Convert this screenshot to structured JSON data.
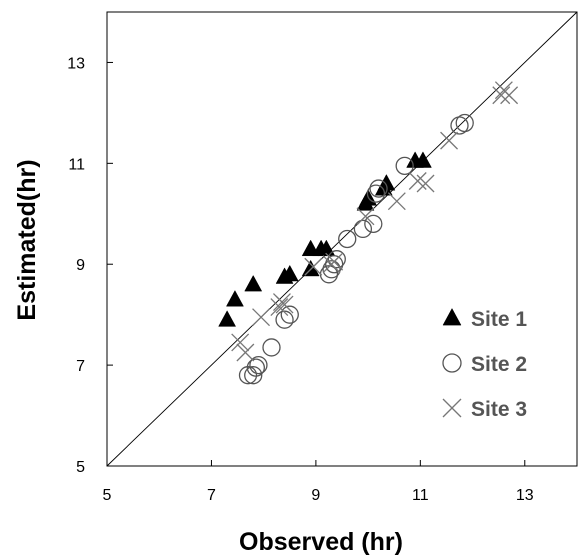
{
  "chart_data": {
    "type": "scatter",
    "xlabel": "Observed (hr)",
    "ylabel": "Estimated(hr)",
    "xlim": [
      5,
      14
    ],
    "ylim": [
      5,
      14
    ],
    "x_ticks": [
      "5",
      "7",
      "9",
      "11",
      "13"
    ],
    "y_ticks": [
      "5",
      "7",
      "9",
      "11",
      "13"
    ],
    "grid": false,
    "reference_line": "1:1",
    "legend_position": "bottom-right",
    "series": [
      {
        "name": "Site 1",
        "marker": "filled-triangle",
        "color": "#000000",
        "points": [
          [
            7.3,
            7.9
          ],
          [
            7.45,
            8.3
          ],
          [
            7.8,
            8.6
          ],
          [
            8.4,
            8.75
          ],
          [
            8.5,
            8.8
          ],
          [
            8.9,
            8.9
          ],
          [
            8.9,
            9.3
          ],
          [
            9.1,
            9.3
          ],
          [
            9.2,
            9.3
          ],
          [
            9.95,
            10.2
          ],
          [
            10.0,
            10.3
          ],
          [
            10.3,
            10.5
          ],
          [
            10.35,
            10.6
          ],
          [
            10.9,
            11.05
          ],
          [
            11.05,
            11.05
          ]
        ]
      },
      {
        "name": "Site 2",
        "marker": "open-circle",
        "color": "#555555",
        "points": [
          [
            7.7,
            6.8
          ],
          [
            7.8,
            6.8
          ],
          [
            7.85,
            6.95
          ],
          [
            7.9,
            7.0
          ],
          [
            8.15,
            7.35
          ],
          [
            8.4,
            7.9
          ],
          [
            8.5,
            8.0
          ],
          [
            9.25,
            8.8
          ],
          [
            9.3,
            8.9
          ],
          [
            9.4,
            9.1
          ],
          [
            9.35,
            9.0
          ],
          [
            9.6,
            9.5
          ],
          [
            9.9,
            9.7
          ],
          [
            10.1,
            9.8
          ],
          [
            10.15,
            10.4
          ],
          [
            10.2,
            10.5
          ],
          [
            10.7,
            10.95
          ],
          [
            11.75,
            11.75
          ],
          [
            11.85,
            11.8
          ]
        ]
      },
      {
        "name": "Site 3",
        "marker": "x",
        "color": "#777777",
        "points": [
          [
            7.55,
            7.45
          ],
          [
            7.65,
            7.25
          ],
          [
            7.95,
            7.95
          ],
          [
            8.3,
            8.15
          ],
          [
            8.35,
            8.25
          ],
          [
            8.4,
            8.2
          ],
          [
            8.95,
            8.95
          ],
          [
            9.3,
            9.0
          ],
          [
            9.35,
            9.05
          ],
          [
            9.95,
            9.95
          ],
          [
            10.55,
            10.25
          ],
          [
            10.95,
            10.65
          ],
          [
            11.1,
            10.6
          ],
          [
            11.55,
            11.45
          ],
          [
            12.55,
            12.35
          ],
          [
            12.6,
            12.45
          ],
          [
            12.7,
            12.35
          ]
        ]
      }
    ]
  }
}
